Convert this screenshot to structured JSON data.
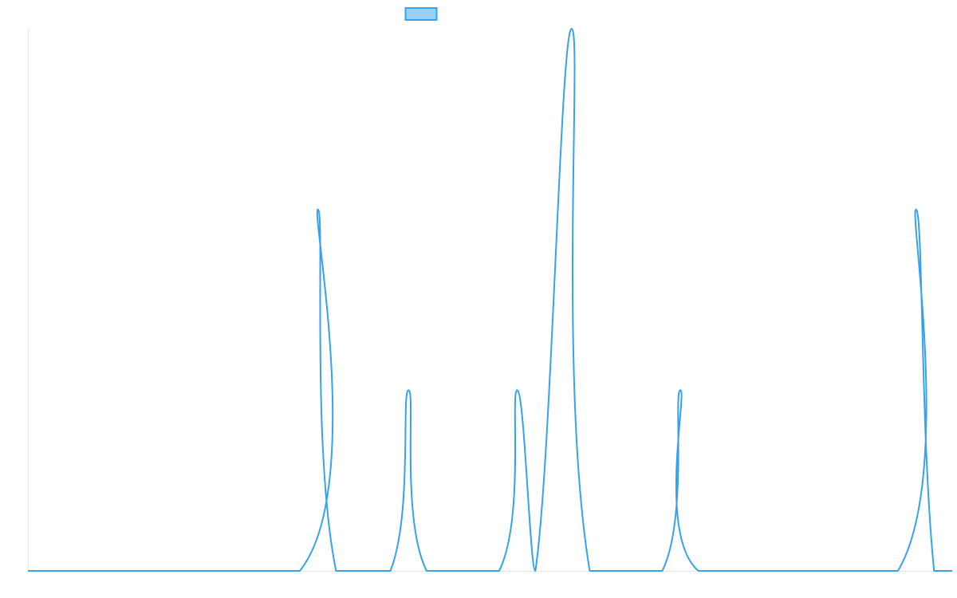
{
  "chart_data": {
    "type": "line",
    "title": "",
    "xlabel": "",
    "ylabel": "",
    "xlim": [
      0,
      51
    ],
    "ylim": [
      0,
      3
    ],
    "grid": false,
    "legend": "top-center",
    "series": [
      {
        "name": "",
        "color": "#36a2eb",
        "fill": "rgba(54,162,235,0.5)",
        "points": [
          [
            0,
            0
          ],
          [
            15,
            0
          ],
          [
            16,
            2
          ],
          [
            17,
            0
          ],
          [
            20,
            0
          ],
          [
            21,
            1
          ],
          [
            22,
            0
          ],
          [
            26,
            0
          ],
          [
            27,
            1
          ],
          [
            28,
            0
          ],
          [
            30,
            3
          ],
          [
            31,
            0
          ],
          [
            35,
            0
          ],
          [
            36,
            1
          ],
          [
            37,
            0
          ],
          [
            48,
            0
          ],
          [
            49,
            2
          ],
          [
            50,
            0
          ],
          [
            51,
            0
          ]
        ]
      }
    ]
  }
}
